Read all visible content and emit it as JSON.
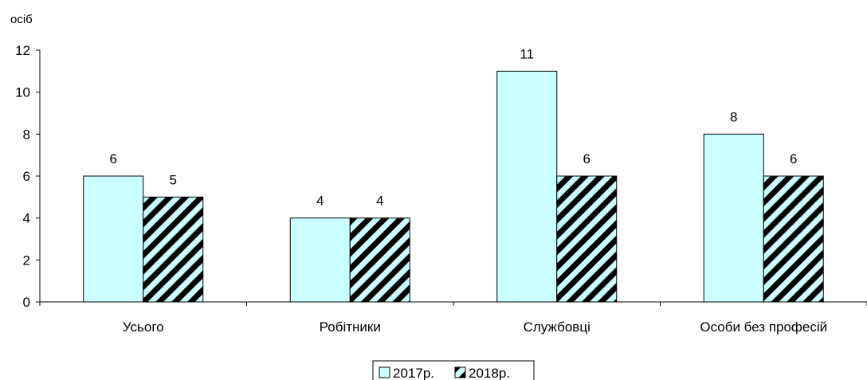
{
  "chart_data": {
    "type": "bar",
    "ylabel": "осіб",
    "ylim": [
      0,
      12
    ],
    "yticks": [
      0,
      2,
      4,
      6,
      8,
      10,
      12
    ],
    "categories": [
      "Усього",
      "Робітники",
      "Службовці",
      "Особи без професій"
    ],
    "series": [
      {
        "name": "2017р.",
        "values": [
          6,
          4,
          11,
          8
        ],
        "fill": "solid",
        "color": "#ccffff"
      },
      {
        "name": "2018р.",
        "values": [
          5,
          4,
          6,
          6
        ],
        "fill": "diagonal-stripes",
        "color": "#ccffff",
        "stripe_color": "#000000"
      }
    ],
    "grid": false,
    "legend_position": "bottom"
  }
}
